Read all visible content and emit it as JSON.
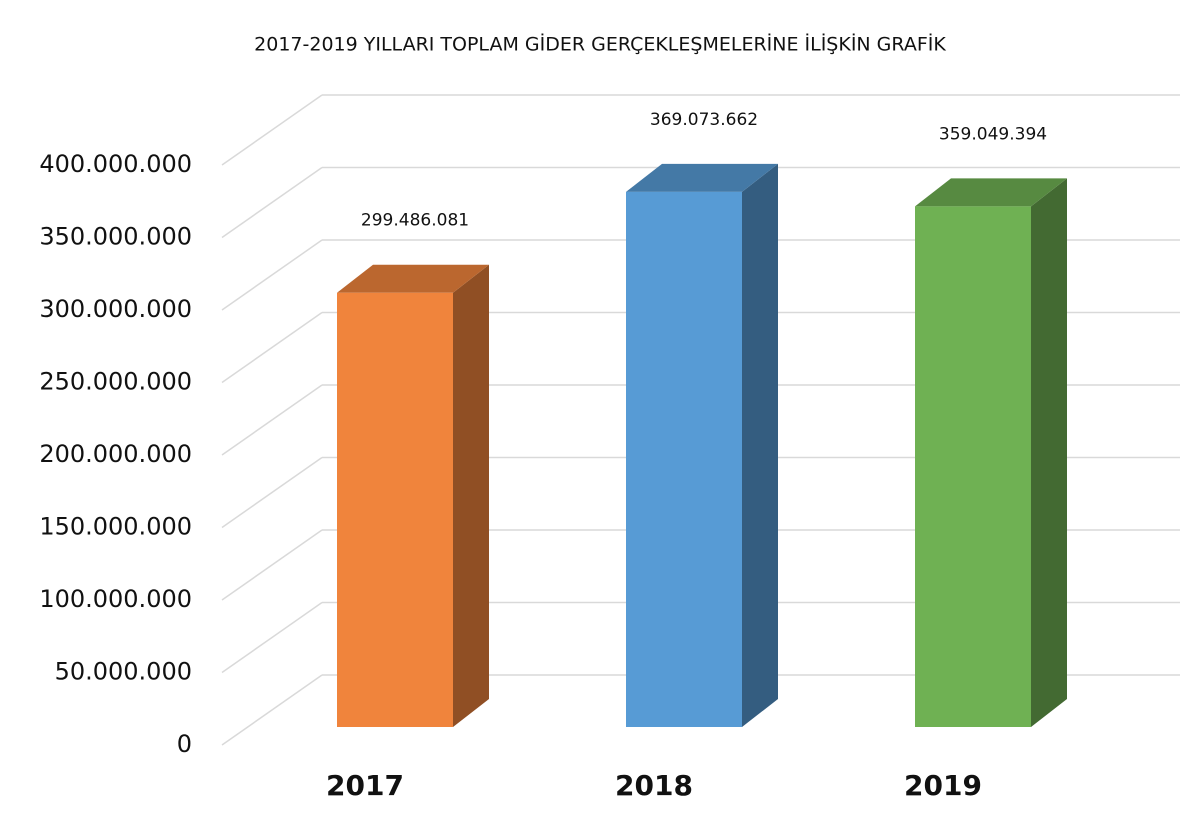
{
  "chart_data": {
    "type": "bar3d",
    "title": "2017-2019  YILLARI TOPLAM GİDER  GERÇEKLEŞMELERİNE  İLİŞKİN  GRAFİK",
    "categories": [
      "2017",
      "2018",
      "2019"
    ],
    "values": [
      299486081,
      369073662,
      359049394
    ],
    "value_labels": [
      "299.486.081",
      "369.073.662",
      "359.049.394"
    ],
    "colors": [
      "#f0843c",
      "#579bd5",
      "#6fb153"
    ],
    "ylim": [
      0,
      400000000
    ],
    "yticks": [
      0,
      {
        "value": 50000000,
        "label": "50.000.000"
      },
      {
        "value": 100000000,
        "label": "100.000.000"
      },
      {
        "value": 150000000,
        "label": "150.000.000"
      },
      {
        "value": 200000000,
        "label": "200.000.000"
      },
      {
        "value": 250000000,
        "label": "250.000.000"
      },
      {
        "value": 300000000,
        "label": "300.000.000"
      },
      {
        "value": 350000000,
        "label": "350.000.000"
      },
      {
        "value": 400000000,
        "label": "400.000.000"
      }
    ],
    "grid": true
  }
}
